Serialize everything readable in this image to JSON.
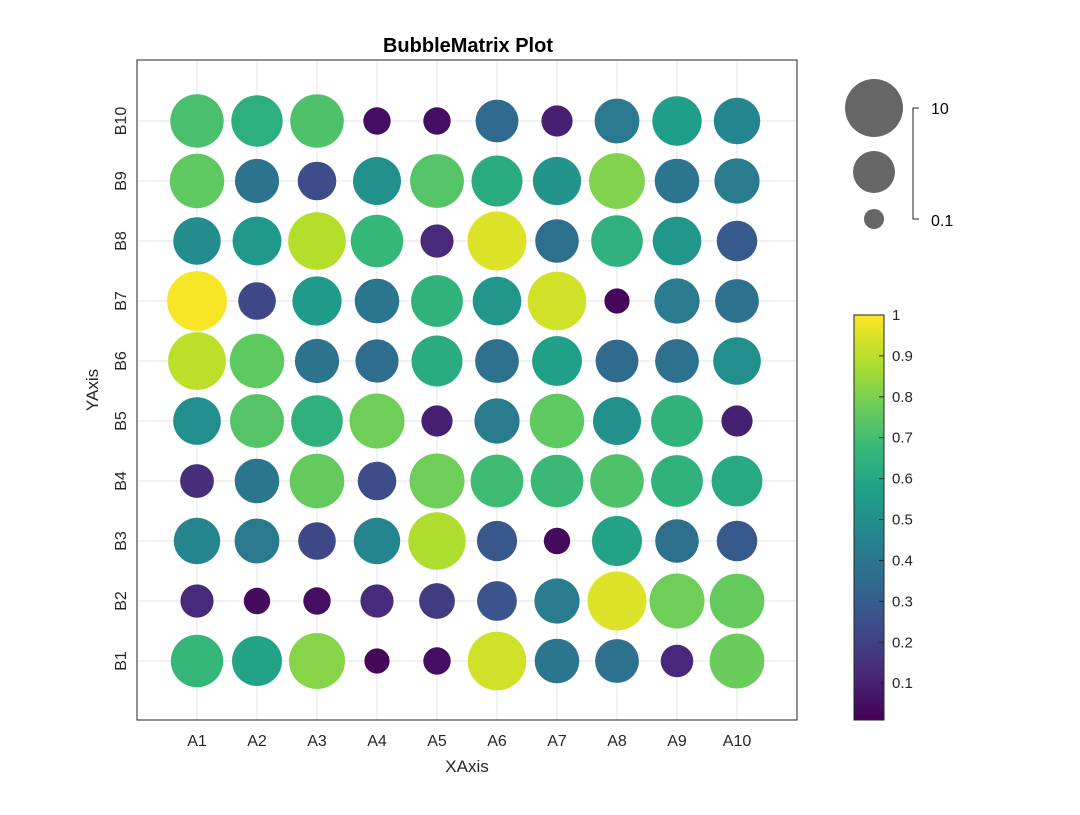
{
  "chart_data": {
    "type": "scatter",
    "title": "BubbleMatrix Plot",
    "xlabel": "XAxis",
    "ylabel": "YAxis",
    "x_categories": [
      "A1",
      "A2",
      "A3",
      "A4",
      "A5",
      "A6",
      "A7",
      "A8",
      "A9",
      "A10"
    ],
    "y_categories": [
      "B1",
      "B2",
      "B3",
      "B4",
      "B5",
      "B6",
      "B7",
      "B8",
      "B9",
      "B10"
    ],
    "grid": true,
    "values": [
      [
        0.67,
        0.58,
        0.82,
        0.03,
        0.05,
        0.93,
        0.4,
        0.38,
        0.12,
        0.77
      ],
      [
        0.13,
        0.04,
        0.05,
        0.13,
        0.18,
        0.27,
        0.42,
        0.95,
        0.78,
        0.76
      ],
      [
        0.46,
        0.41,
        0.22,
        0.46,
        0.88,
        0.28,
        0.04,
        0.58,
        0.37,
        0.29
      ],
      [
        0.14,
        0.4,
        0.76,
        0.24,
        0.78,
        0.69,
        0.68,
        0.72,
        0.65,
        0.61
      ],
      [
        0.5,
        0.73,
        0.64,
        0.78,
        0.1,
        0.42,
        0.75,
        0.51,
        0.65,
        0.1
      ],
      [
        0.9,
        0.75,
        0.39,
        0.36,
        0.62,
        0.38,
        0.57,
        0.35,
        0.38,
        0.5
      ],
      [
        0.99,
        0.22,
        0.55,
        0.4,
        0.65,
        0.53,
        0.93,
        0.03,
        0.42,
        0.38
      ],
      [
        0.49,
        0.54,
        0.89,
        0.67,
        0.13,
        0.95,
        0.37,
        0.64,
        0.53,
        0.29
      ],
      [
        0.75,
        0.39,
        0.24,
        0.51,
        0.73,
        0.62,
        0.52,
        0.81,
        0.4,
        0.42
      ],
      [
        0.71,
        0.63,
        0.72,
        0.05,
        0.05,
        0.35,
        0.1,
        0.41,
        0.56,
        0.46
      ]
    ],
    "size_legend": {
      "labels": [
        "10",
        "0.1"
      ]
    },
    "colorbar": {
      "ticks": [
        "0.1",
        "0.2",
        "0.3",
        "0.4",
        "0.5",
        "0.6",
        "0.7",
        "0.8",
        "0.9",
        "1"
      ],
      "tick_values": [
        0.1,
        0.2,
        0.3,
        0.4,
        0.5,
        0.6,
        0.7,
        0.8,
        0.9,
        1
      ],
      "range": [
        0.01,
        1
      ],
      "colormap": [
        "#440154",
        "#482878",
        "#3e4a89",
        "#31688e",
        "#26828e",
        "#1f9e89",
        "#35b779",
        "#6ece58",
        "#b5de2b",
        "#fde725"
      ]
    }
  }
}
